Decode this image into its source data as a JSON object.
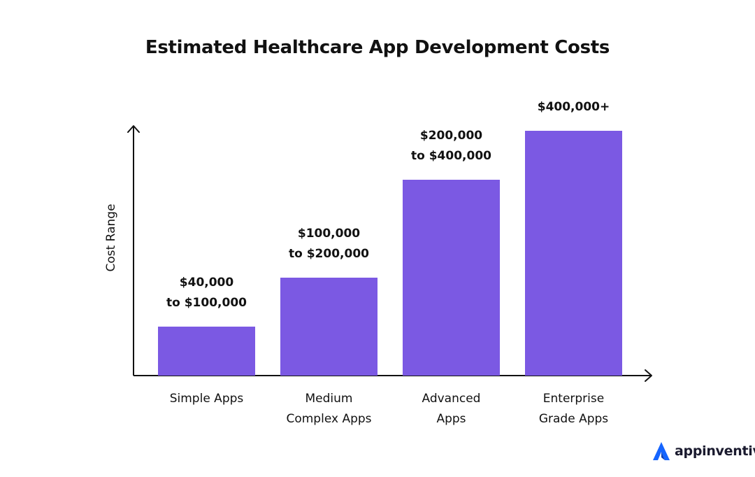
{
  "brand": {
    "name": "appinventiv",
    "icon": "appinventiv-logo-icon"
  },
  "colors": {
    "bar": "#7B59E3",
    "axis": "#111111",
    "text": "#111111",
    "brand": "#1565FF"
  },
  "chart_data": {
    "type": "bar",
    "title": "Estimated Healthcare App Development Costs",
    "xlabel": "",
    "ylabel": "Cost Range",
    "categories": [
      [
        "Simple Apps"
      ],
      [
        "Medium",
        "Complex Apps"
      ],
      [
        "Advanced",
        "Apps"
      ],
      [
        "Enterprise",
        "Grade Apps"
      ]
    ],
    "values": [
      100000,
      200000,
      400000,
      500000
    ],
    "data_labels": [
      [
        "$40,000",
        "to $100,000"
      ],
      [
        "$100,000",
        "to $200,000"
      ],
      [
        "$200,000",
        "to $400,000"
      ],
      [
        "$400,000+"
      ]
    ],
    "ylim": [
      0,
      500000
    ],
    "y_ticks_shown": false,
    "grid": false,
    "legend": "none"
  }
}
